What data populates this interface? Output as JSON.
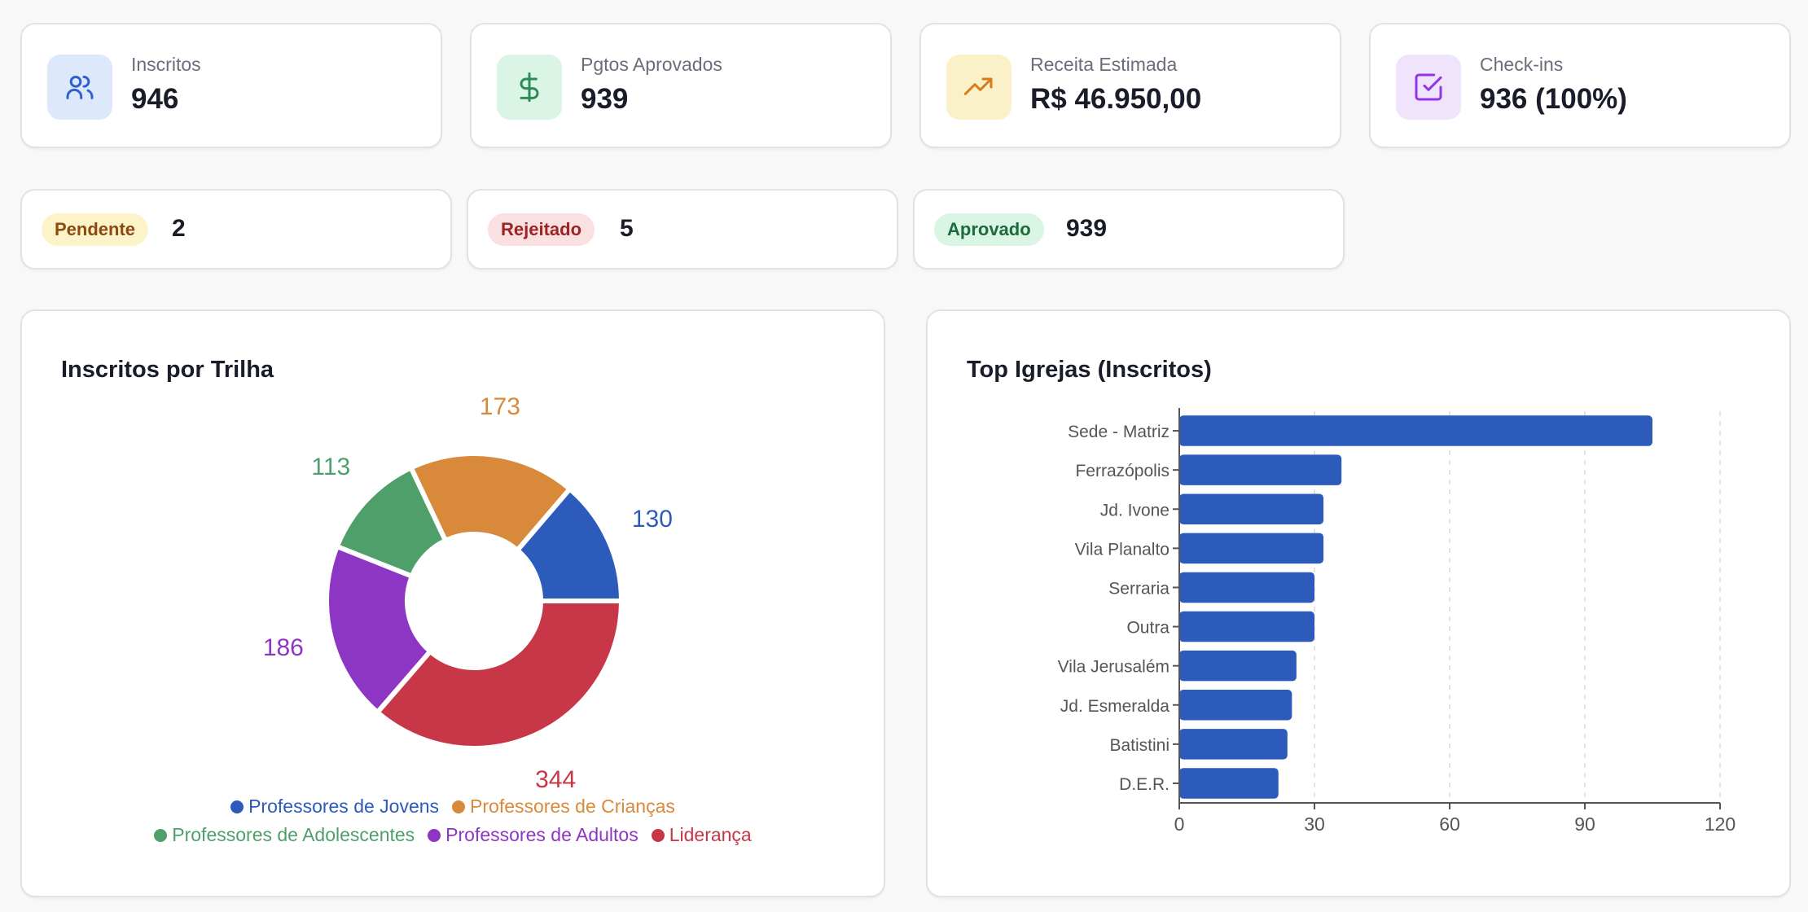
{
  "kpis": [
    {
      "label": "Inscritos",
      "value": "946",
      "icon": "users-icon",
      "bg": "#dde8fb",
      "fg": "#2f5fd0"
    },
    {
      "label": "Pgtos Aprovados",
      "value": "939",
      "icon": "dollar-icon",
      "bg": "#daf5e5",
      "fg": "#2e8b57"
    },
    {
      "label": "Receita Estimada",
      "value": "R$ 46.950,00",
      "icon": "trending-up-icon",
      "bg": "#fbf1c8",
      "fg": "#d97a1c"
    },
    {
      "label": "Check-ins",
      "value": "936 (100%)",
      "icon": "check-square-icon",
      "bg": "#efe4fc",
      "fg": "#9333ea"
    }
  ],
  "statuses": [
    {
      "label": "Pendente",
      "value": "2",
      "bg": "#fdf3c8",
      "fg": "#8a4a12"
    },
    {
      "label": "Rejeitado",
      "value": "5",
      "bg": "#fae0e0",
      "fg": "#9b2424"
    },
    {
      "label": "Aprovado",
      "value": "939",
      "bg": "#d9f5e4",
      "fg": "#1e6a3c"
    }
  ],
  "chart_data": [
    {
      "type": "pie",
      "title": "Inscritos por Trilha",
      "donut": true,
      "categories": [
        "Professores de Jovens",
        "Professores de Crianças",
        "Professores de Adolescentes",
        "Professores de Adultos",
        "Liderança"
      ],
      "values": [
        130,
        173,
        113,
        186,
        344
      ],
      "colors": [
        "#2d5bbb",
        "#d9893a",
        "#4f9f6b",
        "#8e36c4",
        "#c83747"
      ],
      "legend": "bottom"
    },
    {
      "type": "bar",
      "orientation": "horizontal",
      "title": "Top Igrejas (Inscritos)",
      "categories": [
        "Sede - Matriz",
        "Ferrazópolis",
        "Jd. Ivone",
        "Vila Planalto",
        "Serraria",
        "Outra",
        "Vila Jerusalém",
        "Jd. Esmeralda",
        "Batistini",
        "D.E.R."
      ],
      "values": [
        105,
        36,
        32,
        32,
        30,
        30,
        26,
        25,
        24,
        22
      ],
      "xlim": [
        0,
        120
      ],
      "xticks": [
        "0",
        "30",
        "60",
        "90",
        "120"
      ],
      "color": "#2d5bbb",
      "grid": "vertical dashed"
    }
  ]
}
